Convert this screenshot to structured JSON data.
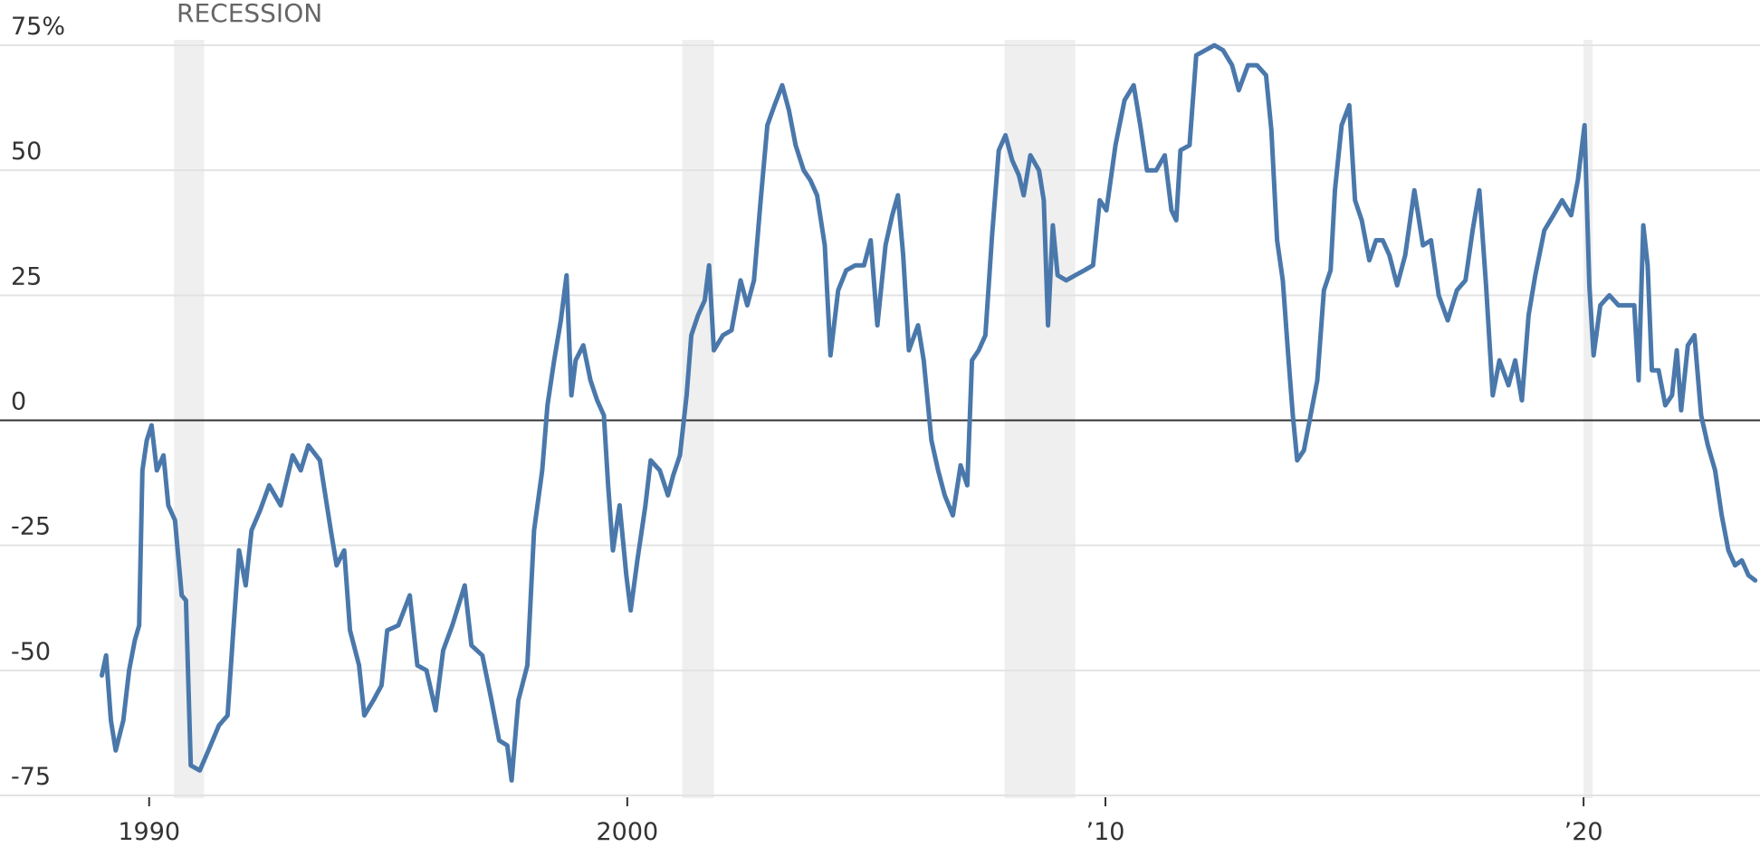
{
  "chart_data": {
    "type": "line",
    "annotation": "RECESSION",
    "color": "#4a78ab",
    "recession_color": "#efefef",
    "grid": true,
    "xlim": [
      1987.07,
      2023.69
    ],
    "ylim": [
      -75,
      75
    ],
    "xticks": [
      1990,
      2000,
      {
        "value": 2010,
        "label": "’10"
      },
      {
        "value": 2020,
        "label": "’20"
      }
    ],
    "yticks": [
      {
        "value": 75,
        "label": "75%"
      },
      50,
      25,
      0,
      -25,
      -50,
      -75
    ],
    "recessions": [
      [
        1990.52,
        1991.15
      ],
      [
        2001.15,
        2001.81
      ],
      [
        2007.89,
        2009.37
      ],
      [
        2020.0,
        2020.19
      ]
    ],
    "x": [
      1989.01,
      1989.1,
      1989.2,
      1989.3,
      1989.46,
      1989.58,
      1989.7,
      1989.79,
      1989.86,
      1989.95,
      1990.05,
      1990.16,
      1990.3,
      1990.4,
      1990.54,
      1990.68,
      1990.77,
      1990.87,
      1991.06,
      1991.24,
      1991.46,
      1991.64,
      1991.76,
      1991.88,
      1992.02,
      1992.14,
      1992.32,
      1992.51,
      1992.75,
      1993.0,
      1993.17,
      1993.33,
      1993.57,
      1993.8,
      1993.92,
      1994.08,
      1994.2,
      1994.39,
      1994.5,
      1994.69,
      1994.86,
      1994.98,
      1995.21,
      1995.45,
      1995.61,
      1995.8,
      1995.99,
      1996.15,
      1996.34,
      1996.6,
      1996.74,
      1996.97,
      1997.16,
      1997.32,
      1997.49,
      1997.58,
      1997.72,
      1997.91,
      1998.05,
      1998.22,
      1998.33,
      1998.47,
      1998.61,
      1998.73,
      1998.83,
      1998.92,
      1999.08,
      1999.23,
      1999.37,
      1999.51,
      1999.6,
      1999.7,
      1999.84,
      1999.98,
      2000.07,
      2000.21,
      2000.38,
      2000.49,
      2000.68,
      2000.85,
      2000.96,
      2001.1,
      2001.24,
      2001.34,
      2001.48,
      2001.62,
      2001.71,
      2001.81,
      2002.0,
      2002.18,
      2002.37,
      2002.51,
      2002.65,
      2002.79,
      2002.93,
      2003.08,
      2003.24,
      2003.38,
      2003.52,
      2003.69,
      2003.83,
      2003.97,
      2004.13,
      2004.25,
      2004.41,
      2004.58,
      2004.77,
      2004.95,
      2005.09,
      2005.23,
      2005.4,
      2005.54,
      2005.66,
      2005.77,
      2005.89,
      2006.08,
      2006.2,
      2006.36,
      2006.5,
      2006.64,
      2006.81,
      2006.97,
      2007.11,
      2007.21,
      2007.35,
      2007.49,
      2007.63,
      2007.77,
      2007.91,
      2008.05,
      2008.19,
      2008.29,
      2008.43,
      2008.61,
      2008.71,
      2008.8,
      2008.9,
      2009.0,
      2009.18,
      2009.37,
      2009.56,
      2009.74,
      2009.88,
      2010.02,
      2010.21,
      2010.4,
      2010.59,
      2010.73,
      2010.87,
      2011.06,
      2011.24,
      2011.38,
      2011.48,
      2011.57,
      2011.76,
      2011.9,
      2012.09,
      2012.28,
      2012.46,
      2012.65,
      2012.79,
      2012.98,
      2013.17,
      2013.36,
      2013.47,
      2013.59,
      2013.71,
      2013.83,
      2013.92,
      2014.01,
      2014.15,
      2014.29,
      2014.43,
      2014.57,
      2014.71,
      2014.8,
      2014.94,
      2015.1,
      2015.22,
      2015.36,
      2015.52,
      2015.66,
      2015.8,
      2015.94,
      2016.1,
      2016.27,
      2016.46,
      2016.64,
      2016.81,
      2016.97,
      2017.16,
      2017.35,
      2017.53,
      2017.68,
      2017.82,
      2017.96,
      2018.1,
      2018.24,
      2018.43,
      2018.57,
      2018.71,
      2018.85,
      2018.99,
      2019.18,
      2019.37,
      2019.55,
      2019.74,
      2019.88,
      2020.02,
      2020.12,
      2020.21,
      2020.35,
      2020.54,
      2020.73,
      2020.92,
      2021.06,
      2021.15,
      2021.25,
      2021.34,
      2021.43,
      2021.57,
      2021.71,
      2021.85,
      2021.95,
      2022.04,
      2022.18,
      2022.32,
      2022.46,
      2022.6,
      2022.75,
      2022.89,
      2023.03,
      2023.17,
      2023.31,
      2023.45,
      2023.59
    ],
    "values": [
      -51,
      -47,
      -60,
      -66,
      -60,
      -50,
      -44,
      -41,
      -10,
      -4,
      -1,
      -10,
      -7,
      -17,
      -20,
      -35,
      -36,
      -69,
      -70,
      -66,
      -61,
      -59,
      -42,
      -26,
      -33,
      -22,
      -18,
      -13,
      -17,
      -7,
      -10,
      -5,
      -8,
      -22,
      -29,
      -26,
      -42,
      -49,
      -59,
      -56,
      -53,
      -42,
      -41,
      -35,
      -49,
      -50,
      -58,
      -46,
      -41,
      -33,
      -45,
      -47,
      -56,
      -64,
      -65,
      -72,
      -56,
      -49,
      -22,
      -10,
      3,
      12,
      20,
      29,
      5,
      12,
      15,
      8,
      4,
      1,
      -13,
      -26,
      -17,
      -31,
      -38,
      -28,
      -17,
      -8,
      -10,
      -15,
      -11,
      -7,
      5,
      17,
      21,
      24,
      31,
      14,
      17,
      18,
      28,
      23,
      28,
      44,
      59,
      63,
      67,
      62,
      55,
      50,
      48,
      45,
      35,
      13,
      26,
      30,
      31,
      31,
      36,
      19,
      35,
      41,
      45,
      33,
      14,
      19,
      12,
      -4,
      -10,
      -15,
      -19,
      -9,
      -13,
      12,
      14,
      17,
      37,
      54,
      57,
      52,
      49,
      45,
      53,
      50,
      44,
      19,
      39,
      29,
      28,
      29,
      30,
      31,
      44,
      42,
      55,
      64,
      67,
      59,
      50,
      50,
      53,
      42,
      40,
      54,
      55,
      73,
      74,
      75,
      74,
      71,
      66,
      71,
      71,
      69,
      58,
      36,
      28,
      12,
      1,
      -8,
      -6,
      1,
      8,
      26,
      30,
      46,
      59,
      63,
      44,
      40,
      32,
      36,
      36,
      33,
      27,
      33,
      46,
      35,
      36,
      25,
      20,
      26,
      28,
      38,
      46,
      27,
      5,
      12,
      7,
      12,
      4,
      21,
      29,
      38,
      41,
      44,
      41,
      48,
      59,
      27,
      13,
      23,
      25,
      23,
      23,
      23,
      8,
      39,
      31,
      10,
      10,
      3,
      5,
      14,
      2,
      15,
      17,
      1,
      -5,
      -10,
      -19,
      -26,
      -29,
      -28,
      -31,
      -32
    ]
  }
}
